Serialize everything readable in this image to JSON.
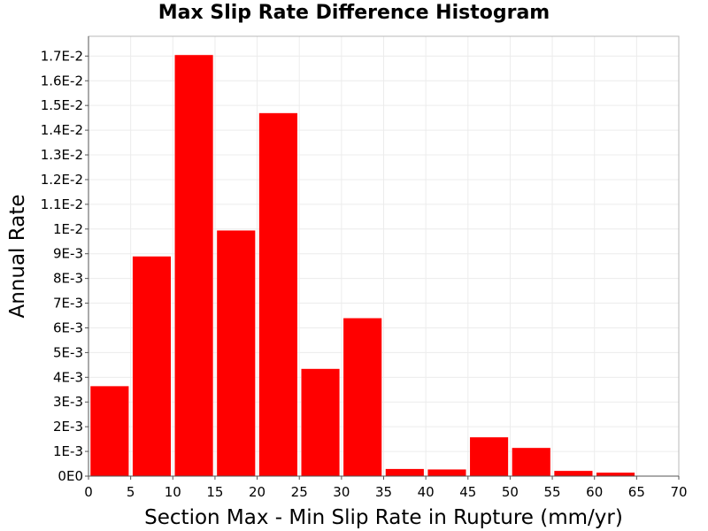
{
  "chart_data": {
    "type": "bar",
    "title": "Max Slip Rate Difference Histogram",
    "xlabel": "Section Max - Min Slip Rate in Rupture (mm/yr)",
    "ylabel": "Annual Rate",
    "xlim": [
      0,
      70
    ],
    "ylim": [
      0,
      0.0178
    ],
    "grid": true,
    "bin_width": 5,
    "bar_color": "#ff0000",
    "bins": [
      {
        "x0": 0,
        "x1": 5,
        "value": 0.00365
      },
      {
        "x0": 5,
        "x1": 10,
        "value": 0.0089
      },
      {
        "x0": 10,
        "x1": 15,
        "value": 0.01705
      },
      {
        "x0": 15,
        "x1": 20,
        "value": 0.00995
      },
      {
        "x0": 20,
        "x1": 25,
        "value": 0.0147
      },
      {
        "x0": 25,
        "x1": 30,
        "value": 0.00435
      },
      {
        "x0": 30,
        "x1": 35,
        "value": 0.0064
      },
      {
        "x0": 35,
        "x1": 40,
        "value": 0.0003
      },
      {
        "x0": 40,
        "x1": 45,
        "value": 0.00028
      },
      {
        "x0": 45,
        "x1": 50,
        "value": 0.00158
      },
      {
        "x0": 50,
        "x1": 55,
        "value": 0.00115
      },
      {
        "x0": 55,
        "x1": 60,
        "value": 0.00022
      },
      {
        "x0": 60,
        "x1": 65,
        "value": 0.00015
      },
      {
        "x0": 65,
        "x1": 70,
        "value": 0.0
      }
    ],
    "x_ticks": [
      {
        "value": 0,
        "label": "0"
      },
      {
        "value": 5,
        "label": "5"
      },
      {
        "value": 10,
        "label": "10"
      },
      {
        "value": 15,
        "label": "15"
      },
      {
        "value": 20,
        "label": "20"
      },
      {
        "value": 25,
        "label": "25"
      },
      {
        "value": 30,
        "label": "30"
      },
      {
        "value": 35,
        "label": "35"
      },
      {
        "value": 40,
        "label": "40"
      },
      {
        "value": 45,
        "label": "45"
      },
      {
        "value": 50,
        "label": "50"
      },
      {
        "value": 55,
        "label": "55"
      },
      {
        "value": 60,
        "label": "60"
      },
      {
        "value": 65,
        "label": "65"
      },
      {
        "value": 70,
        "label": "70"
      }
    ],
    "y_ticks": [
      {
        "value": 0,
        "label": "0E0"
      },
      {
        "value": 0.001,
        "label": "1E-3"
      },
      {
        "value": 0.002,
        "label": "2E-3"
      },
      {
        "value": 0.003,
        "label": "3E-3"
      },
      {
        "value": 0.004,
        "label": "4E-3"
      },
      {
        "value": 0.005,
        "label": "5E-3"
      },
      {
        "value": 0.006,
        "label": "6E-3"
      },
      {
        "value": 0.007,
        "label": "7E-3"
      },
      {
        "value": 0.008,
        "label": "8E-3"
      },
      {
        "value": 0.009,
        "label": "9E-3"
      },
      {
        "value": 0.01,
        "label": "1E-2"
      },
      {
        "value": 0.011,
        "label": "1.1E-2"
      },
      {
        "value": 0.012,
        "label": "1.2E-2"
      },
      {
        "value": 0.013,
        "label": "1.3E-2"
      },
      {
        "value": 0.014,
        "label": "1.4E-2"
      },
      {
        "value": 0.015,
        "label": "1.5E-2"
      },
      {
        "value": 0.016,
        "label": "1.6E-2"
      },
      {
        "value": 0.017,
        "label": "1.7E-2"
      }
    ]
  }
}
